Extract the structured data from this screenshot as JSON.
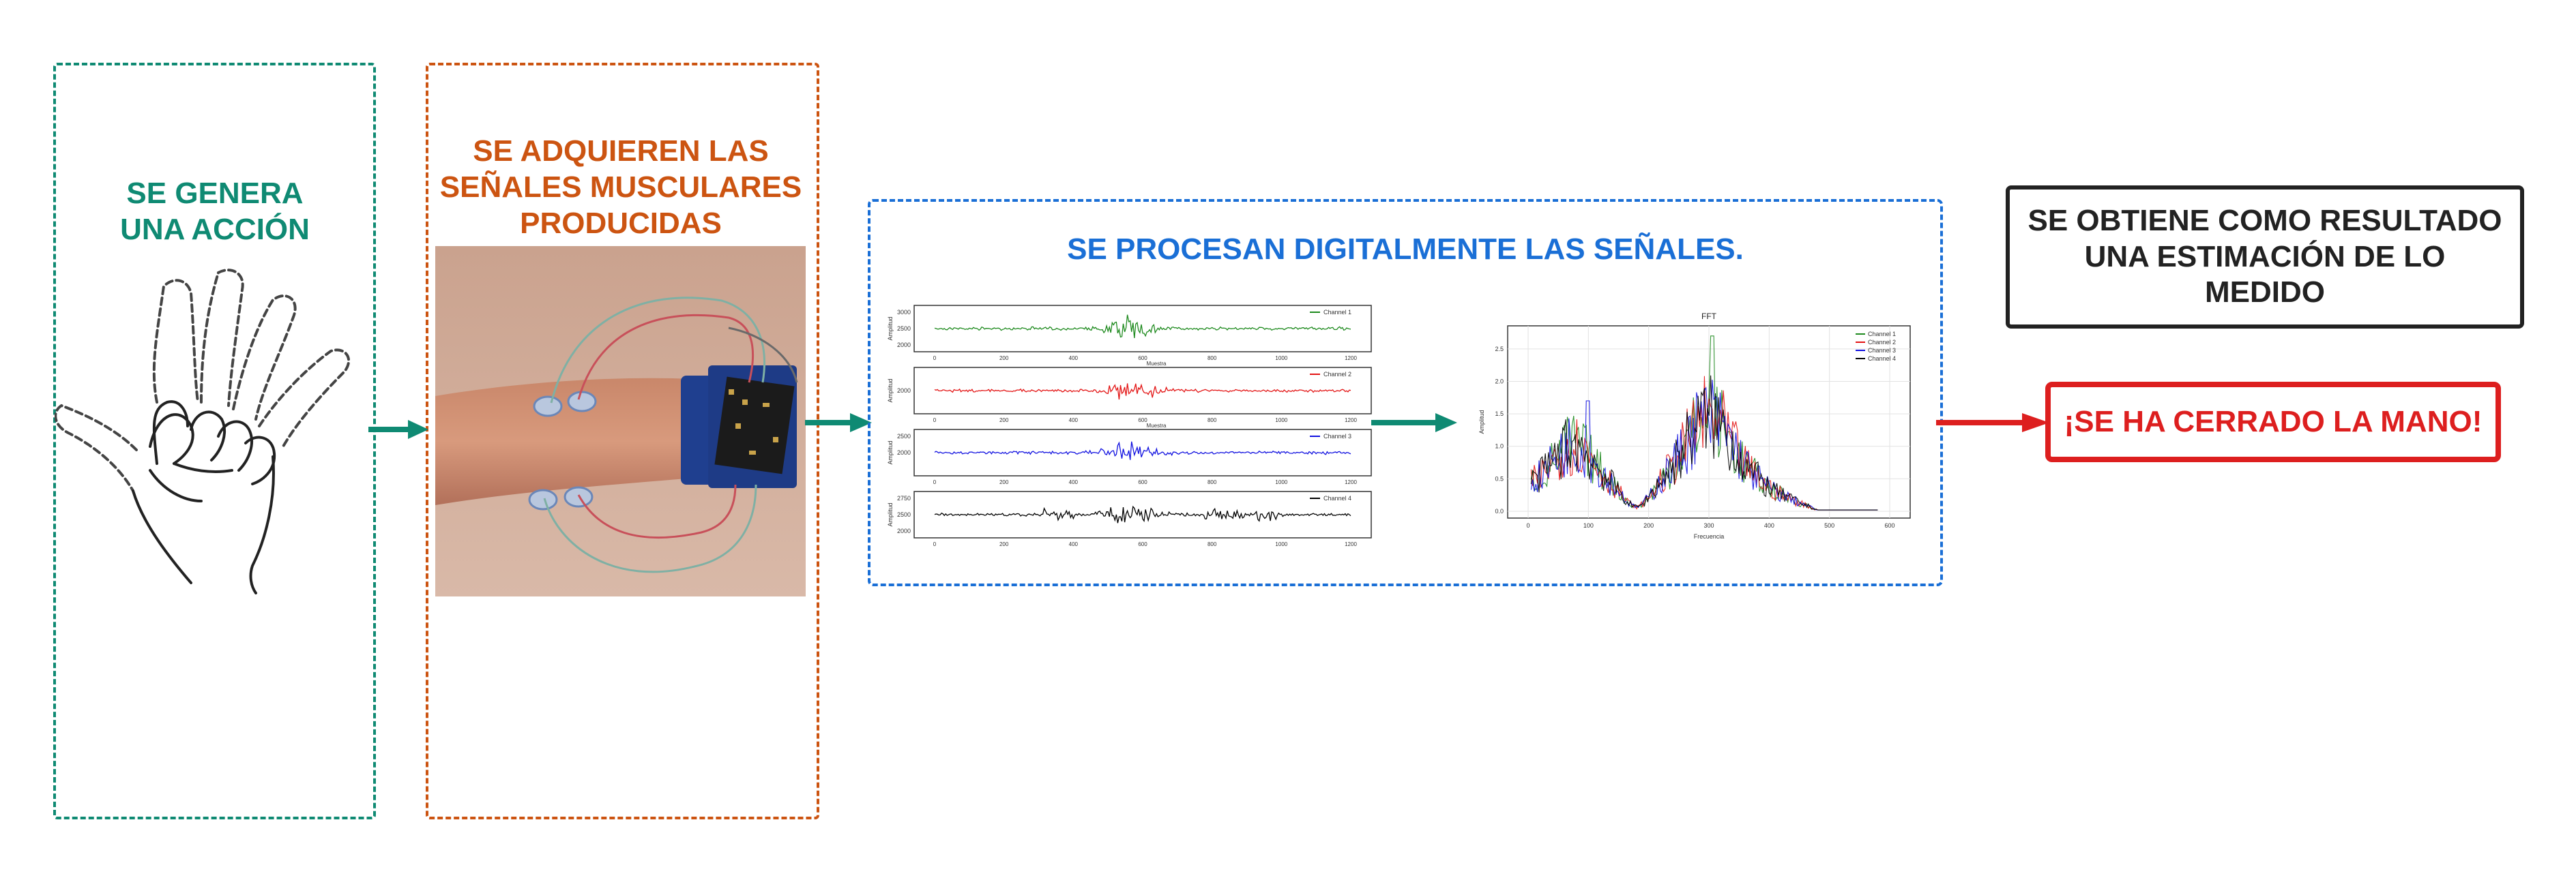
{
  "colors": {
    "stage1": "#0f8a73",
    "stage2": "#cc5411",
    "stage3": "#1a6fd6",
    "result": "#222222",
    "conclusion": "#dd1f1f",
    "arrow_teal": "#0f8a73",
    "arrow_red": "#dd1f1f"
  },
  "stages": [
    {
      "title": "SE GENERA UNA ACCIÓN"
    },
    {
      "title": "SE ADQUIEREN LAS SEÑALES MUSCULARES PRODUCIDAS"
    },
    {
      "title": "SE PROCESAN DIGITALMENTE LAS SEÑALES."
    }
  ],
  "result": {
    "text": "SE OBTIENE COMO RESULTADO UNA ESTIMACIÓN DE LO MEDIDO"
  },
  "conclusion": {
    "text": "¡SE HA CERRADO LA MANO!"
  },
  "images": {
    "hand": "hand-closing-icon",
    "arm": "emg-electrodes-arm-photo"
  },
  "time_plot": {
    "x_ticks": [
      "0",
      "200",
      "400",
      "600",
      "800",
      "1000",
      "1200"
    ],
    "x_label": "Muestra",
    "y_label": "Amplitud",
    "channels": [
      {
        "name": "Channel 1",
        "color": "#1e8a1e",
        "y_ticks": [
          "3000",
          "2500",
          "2000"
        ]
      },
      {
        "name": "Channel 2",
        "color": "#e31414",
        "y_ticks": [
          "",
          "2000",
          ""
        ]
      },
      {
        "name": "Channel 3",
        "color": "#1010e0",
        "y_ticks": [
          "2500",
          "2000",
          ""
        ]
      },
      {
        "name": "Channel 4",
        "color": "#000000",
        "y_ticks": [
          "2750",
          "2500",
          "2000"
        ]
      }
    ]
  },
  "fft_plot": {
    "title": "FFT",
    "x_label": "Frecuencia",
    "y_label": "Amplitud",
    "x_ticks": [
      "0",
      "100",
      "200",
      "300",
      "400",
      "500",
      "600"
    ],
    "y_ticks": [
      "0.0",
      "0.5",
      "1.0",
      "1.5",
      "2.0",
      "2.5"
    ],
    "legend": [
      "Channel 1",
      "Channel 2",
      "Channel 3",
      "Channel 4"
    ],
    "legend_colors": [
      "#1e8a1e",
      "#e31414",
      "#1010e0",
      "#000000"
    ]
  }
}
